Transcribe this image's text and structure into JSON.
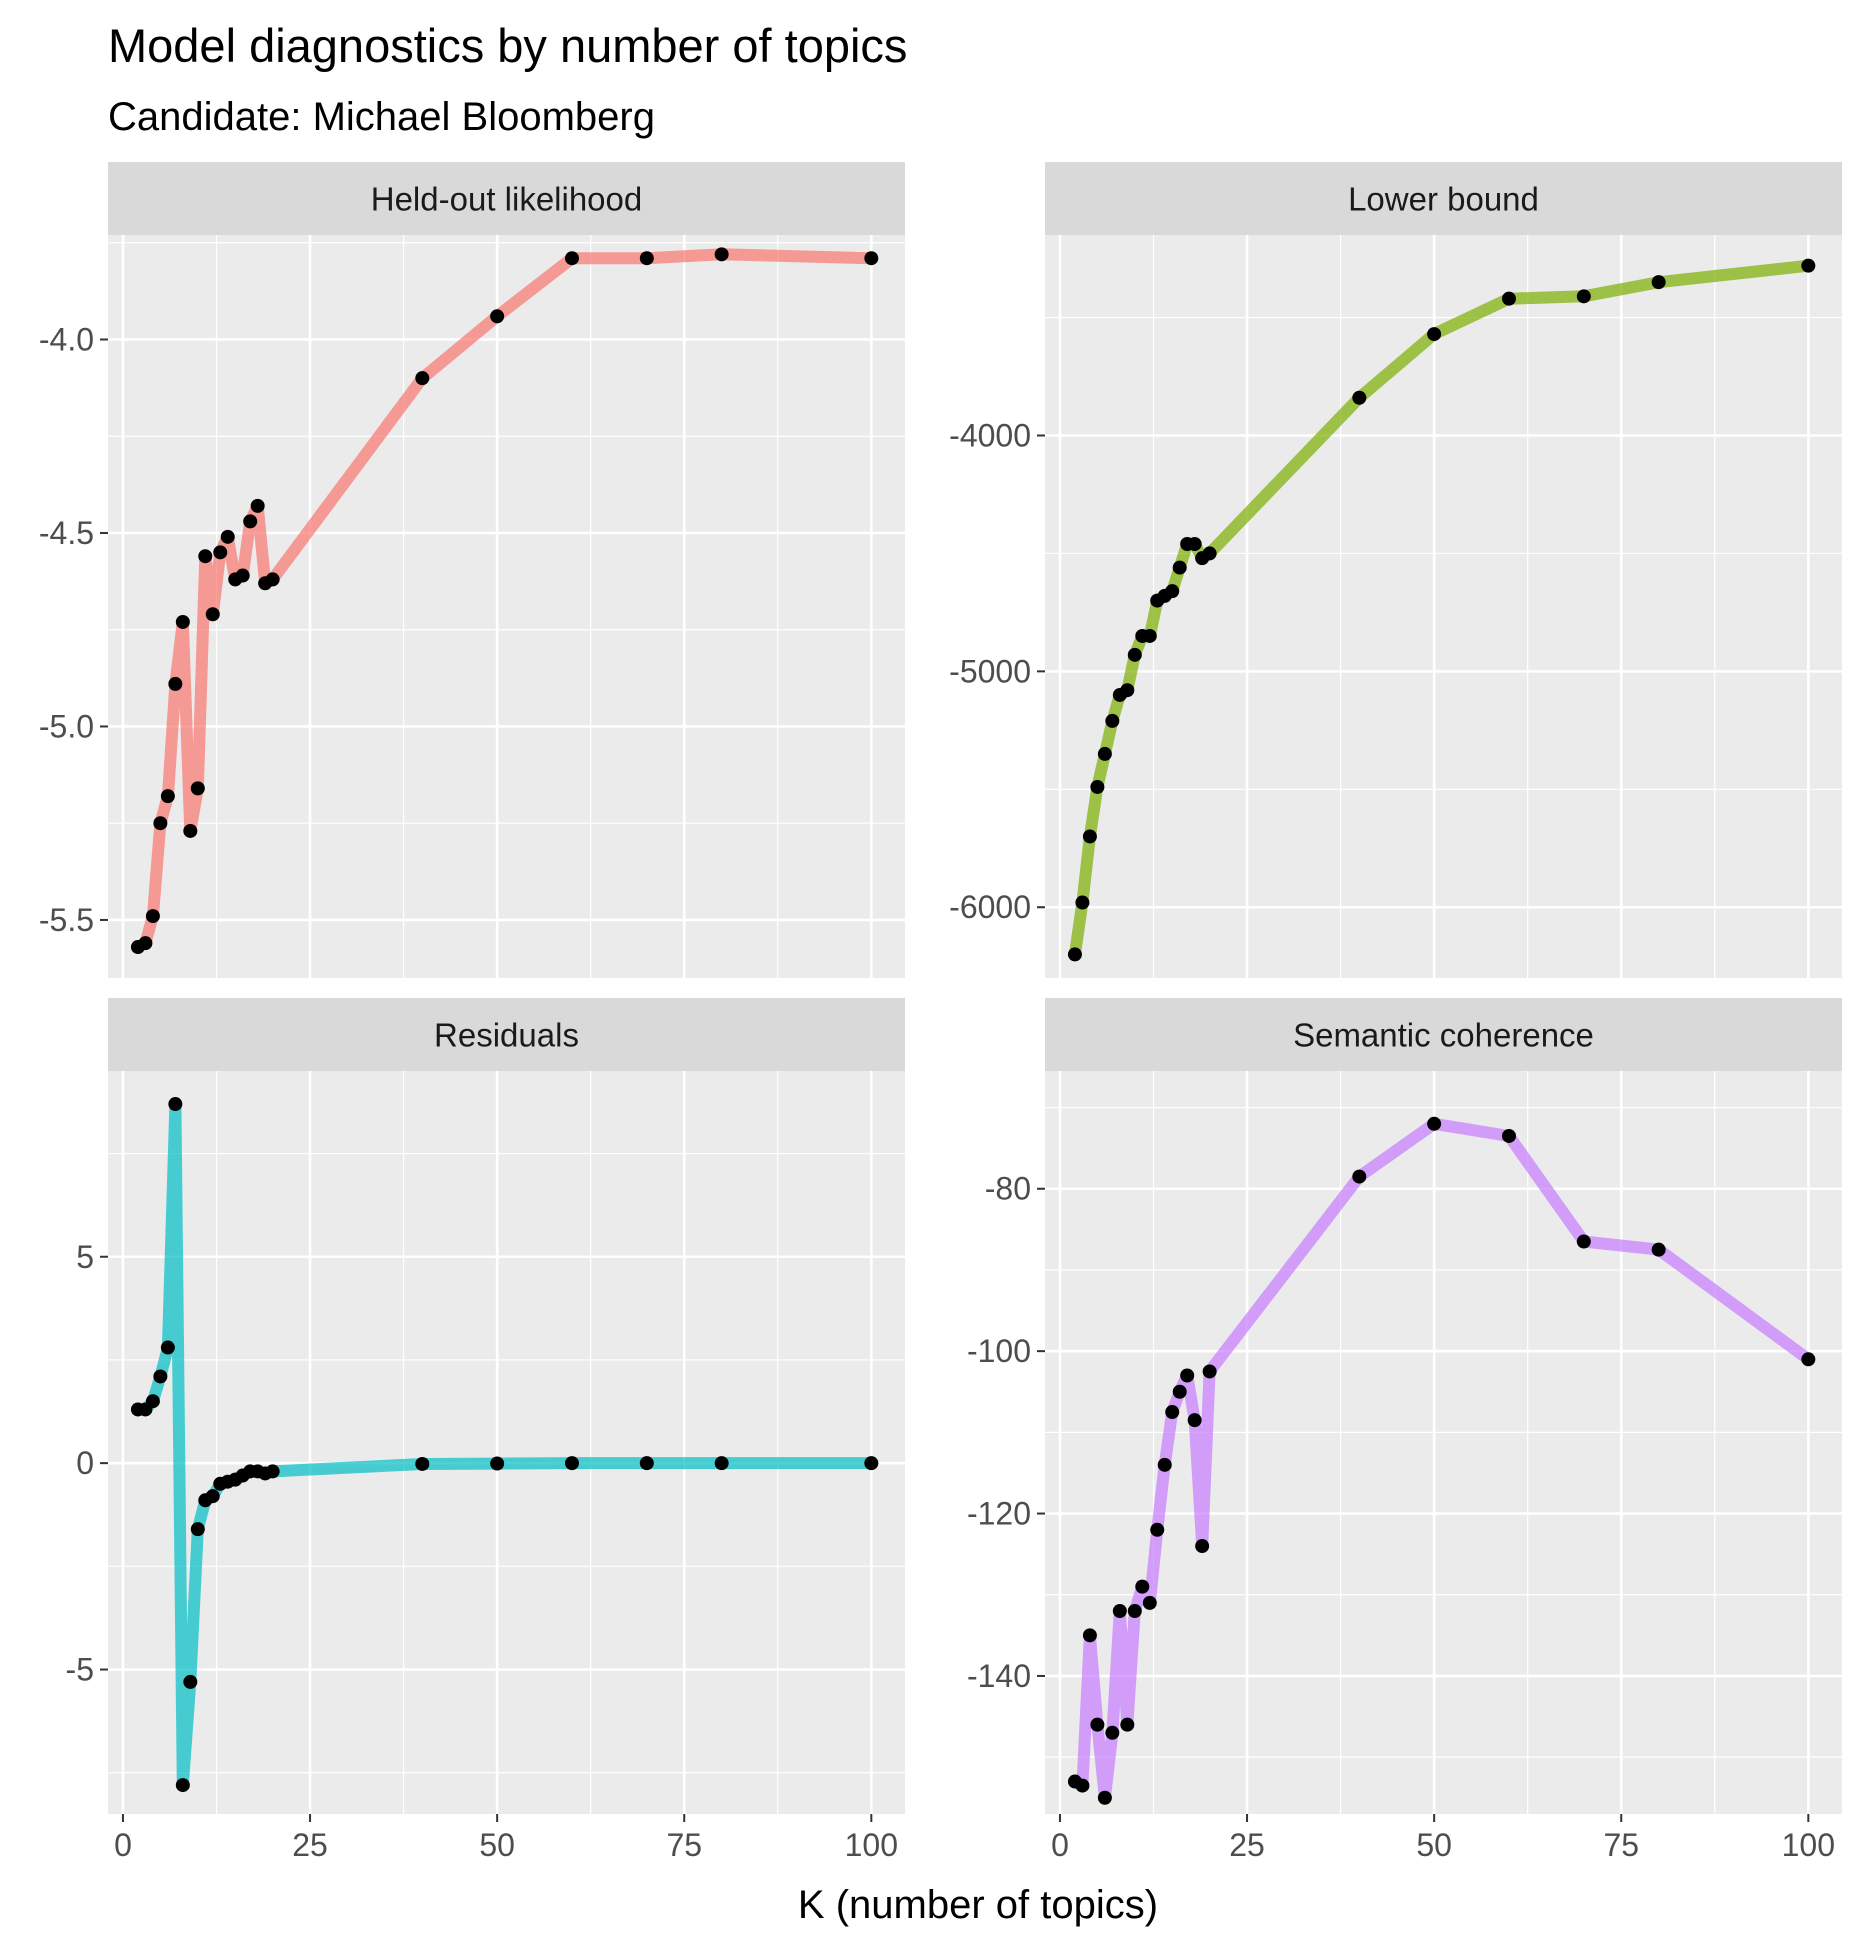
{
  "chart_data": {
    "type": "line",
    "title": "Model diagnostics by number of topics",
    "subtitle": "Candidate: Michael Bloomberg",
    "xlabel": "K (number of topics)",
    "ylabel": "",
    "xlim": [
      -2,
      104.5
    ],
    "x_ticks": [
      0,
      25,
      50,
      75,
      100
    ],
    "x_tick_labels": [
      "0",
      "25",
      "50",
      "75",
      "100"
    ],
    "facets_ncol": 2,
    "grid": true,
    "legend": "none",
    "panels": [
      {
        "strip": "Held-out likelihood",
        "color": "#F8766D",
        "ylim": [
          -5.65,
          -3.73
        ],
        "y_ticks": [
          -4.0,
          -4.5,
          -5.0,
          -5.5
        ],
        "y_tick_labels": [
          "-4.0",
          "-4.5",
          "-5.0",
          "-5.5"
        ],
        "x": [
          2,
          3,
          4,
          5,
          6,
          7,
          8,
          9,
          10,
          11,
          12,
          13,
          14,
          15,
          16,
          17,
          18,
          19,
          20,
          40,
          50,
          60,
          70,
          80,
          100
        ],
        "y": [
          -5.57,
          -5.56,
          -5.49,
          -5.25,
          -5.18,
          -4.89,
          -4.73,
          -5.27,
          -5.16,
          -4.56,
          -4.71,
          -4.55,
          -4.51,
          -4.62,
          -4.61,
          -4.47,
          -4.43,
          -4.63,
          -4.62,
          -4.1,
          -3.94,
          -3.79,
          -3.79,
          -3.78,
          -3.79
        ]
      },
      {
        "strip": "Lower bound",
        "color": "#7CAE00",
        "ylim": [
          -6300,
          -3150
        ],
        "y_ticks": [
          -4000,
          -5000,
          -6000
        ],
        "y_tick_labels": [
          "-4000",
          "-5000",
          "-6000"
        ],
        "x": [
          2,
          3,
          4,
          5,
          6,
          7,
          8,
          9,
          10,
          11,
          12,
          13,
          14,
          15,
          16,
          17,
          18,
          19,
          20,
          40,
          50,
          60,
          70,
          80,
          100
        ],
        "y": [
          -6200,
          -5980,
          -5700,
          -5490,
          -5350,
          -5210,
          -5100,
          -5080,
          -4930,
          -4850,
          -4850,
          -4700,
          -4680,
          -4660,
          -4560,
          -4460,
          -4460,
          -4520,
          -4500,
          -3840,
          -3570,
          -3420,
          -3410,
          -3350,
          -3280
        ]
      },
      {
        "strip": "Residuals",
        "color": "#00BFC4",
        "ylim": [
          -8.5,
          9.5
        ],
        "y_ticks": [
          5,
          0,
          -5
        ],
        "y_tick_labels": [
          "5",
          "0",
          "-5"
        ],
        "x": [
          2,
          3,
          4,
          5,
          6,
          7,
          8,
          9,
          10,
          11,
          12,
          13,
          14,
          15,
          16,
          17,
          18,
          19,
          20,
          40,
          50,
          60,
          70,
          80,
          100
        ],
        "y": [
          1.3,
          1.3,
          1.5,
          2.1,
          2.8,
          8.7,
          -7.8,
          -5.3,
          -1.6,
          -0.9,
          -0.8,
          -0.5,
          -0.45,
          -0.4,
          -0.3,
          -0.2,
          -0.2,
          -0.25,
          -0.2,
          -0.02,
          -0.01,
          0.0,
          0.0,
          0.0,
          0.0
        ]
      },
      {
        "strip": "Semantic coherence",
        "color": "#C77CFF",
        "ylim": [
          -157,
          -65.5
        ],
        "y_ticks": [
          -80,
          -100,
          -120,
          -140
        ],
        "y_tick_labels": [
          "-80",
          "-100",
          "-120",
          "-140"
        ],
        "x": [
          2,
          3,
          4,
          5,
          6,
          7,
          8,
          9,
          10,
          11,
          12,
          13,
          14,
          15,
          16,
          17,
          18,
          19,
          20,
          40,
          50,
          60,
          70,
          80,
          100
        ],
        "y": [
          -153,
          -153.5,
          -135,
          -146,
          -155,
          -147,
          -132,
          -146,
          -132,
          -129,
          -131,
          -122,
          -114,
          -107.5,
          -105,
          -103,
          -108.5,
          -124,
          -102.5,
          -78.5,
          -72,
          -73.5,
          -86.5,
          -87.5,
          -101
        ]
      }
    ]
  }
}
